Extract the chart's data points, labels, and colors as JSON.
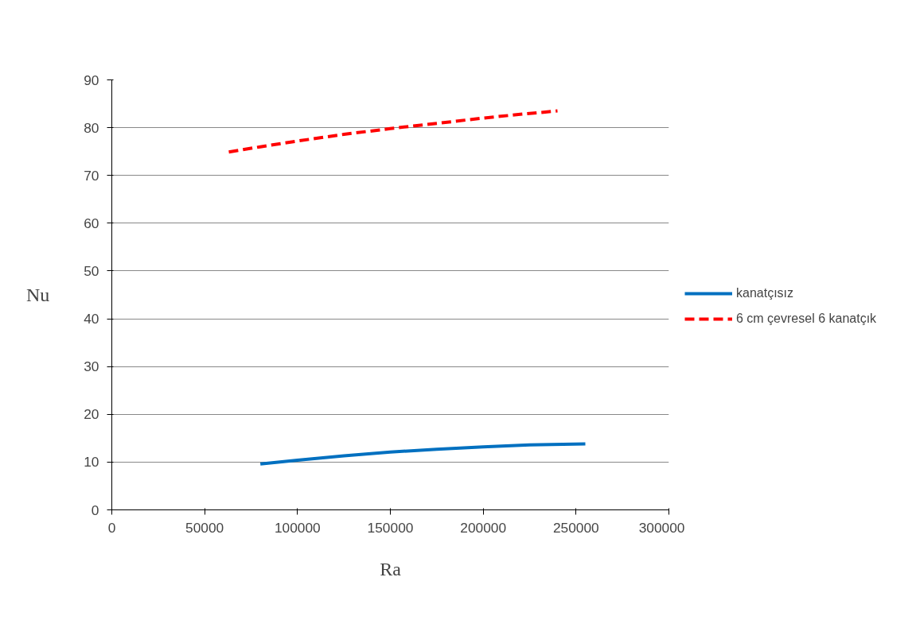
{
  "chart_data": {
    "type": "line",
    "xlabel": "Ra",
    "ylabel": "Nu",
    "xlim": [
      0,
      300000
    ],
    "xticks": [
      0,
      50000,
      100000,
      150000,
      200000,
      250000,
      300000
    ],
    "ylim": [
      0,
      90
    ],
    "yticks": [
      0,
      10,
      20,
      30,
      40,
      50,
      60,
      70,
      80,
      90
    ],
    "grid": "y",
    "legend": "right",
    "series": [
      {
        "name": "kanatçısız",
        "color": "#0070c0",
        "line_style": "solid",
        "x": [
          80000,
          100000,
          125000,
          150000,
          175000,
          200000,
          225000,
          255000
        ],
        "values": [
          9.6,
          10.4,
          11.3,
          12.1,
          12.7,
          13.2,
          13.6,
          13.8
        ]
      },
      {
        "name": "6 cm çevresel 6 kanatçık",
        "color": "#ff0000",
        "line_style": "dashed",
        "x": [
          63000,
          80000,
          100000,
          125000,
          150000,
          175000,
          200000,
          220000,
          240000
        ],
        "values": [
          74.9,
          76.0,
          77.2,
          78.6,
          79.8,
          80.9,
          82.0,
          82.8,
          83.5
        ]
      }
    ]
  }
}
